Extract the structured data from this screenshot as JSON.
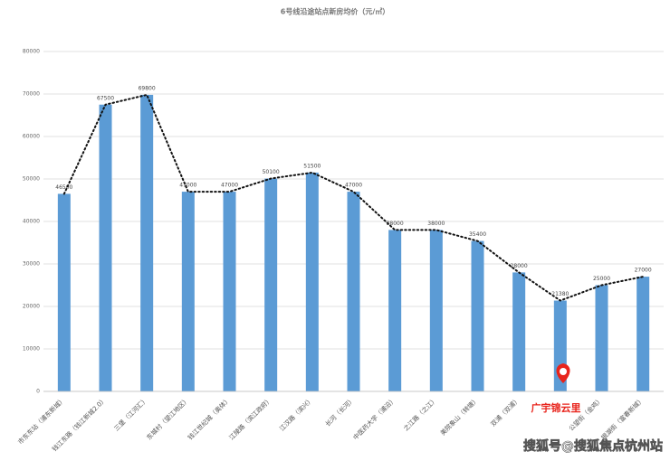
{
  "chart_data": {
    "type": "bar",
    "title": "6号线沿途站点新房均价（元/㎡）",
    "categories": [
      "市东东站（浦东新城）",
      "钱江东路（钱江新城2.0）",
      "三堡（江河汇）",
      "东城村（望江地区）",
      "钱江世纪城（奥体）",
      "江陵路（滨江政府）",
      "江汉路（滨兴）",
      "长河（长河）",
      "中医药大学（浦沿）",
      "之江路（之江）",
      "美院象山（转塘）",
      "双浦（双浦）",
      null,
      "公望街（金鸡）",
      "银湖街（富春新城）"
    ],
    "values": [
      46500,
      67500,
      69800,
      47000,
      47000,
      50100,
      51500,
      47000,
      38000,
      38000,
      35400,
      28000,
      21380,
      25000,
      27000
    ],
    "color": "#5b9bd5",
    "line_color": "#111111",
    "ylim": [
      0,
      80000
    ],
    "yticks": [
      0,
      10000,
      20000,
      30000,
      40000,
      50000,
      60000,
      70000,
      80000
    ],
    "grid": true,
    "annotation": "广宇锦云里",
    "annotation_color": "#e8241c",
    "watermark": "搜狐号@搜狐焦点杭州站"
  }
}
